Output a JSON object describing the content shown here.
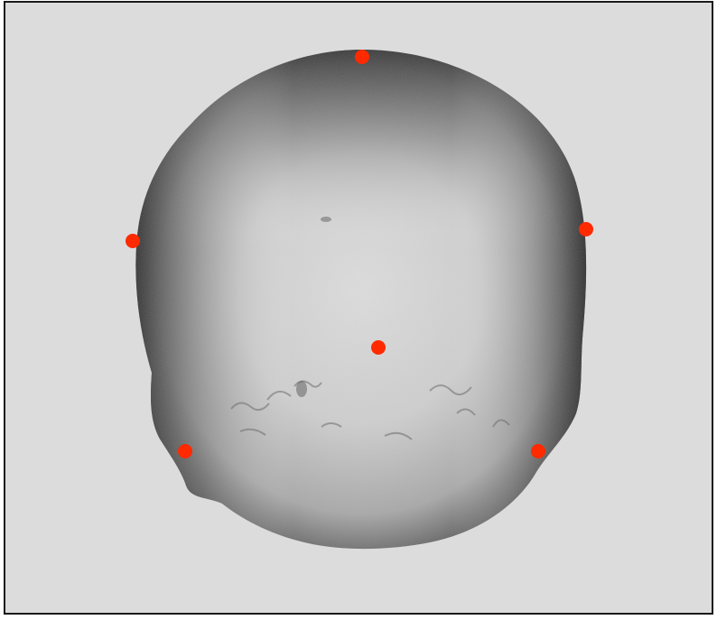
{
  "viewport": {
    "background_color": "#dcdcdc",
    "border_color": "#1a1a1a"
  },
  "specimen": {
    "subject": "cranium-posterior-view",
    "surface_color_light": "#d4d4d4",
    "surface_color_mid": "#9a9a9a",
    "surface_color_dark": "#3c3c3c"
  },
  "landmarks": {
    "color": "#ff2a00",
    "count": 6,
    "names": [
      "top",
      "left",
      "right",
      "center",
      "bottom-left",
      "bottom-right"
    ]
  }
}
